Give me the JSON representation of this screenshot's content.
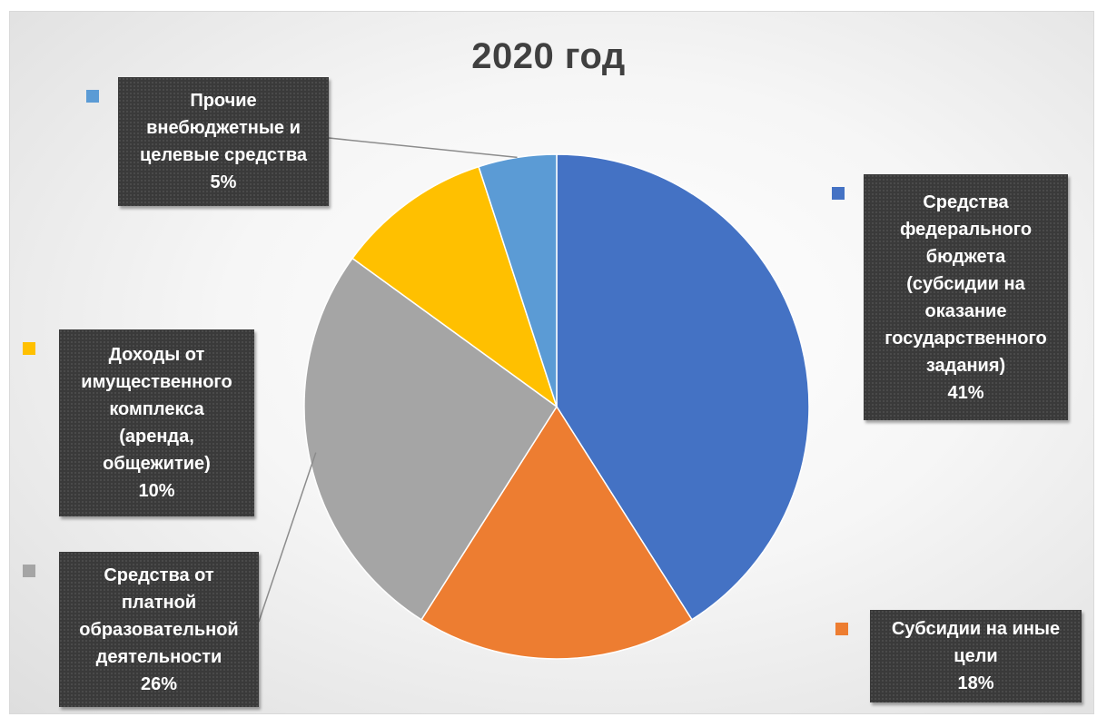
{
  "chart_data": {
    "type": "pie",
    "title": "2020 год",
    "categories": [
      "Средства федерального бюджета (субсидии на оказание государственного задания)",
      "Субсидии на иные цели",
      "Средства от платной образовательной деятельности",
      "Доходы от имущественного комплекса (аренда, общежитие)",
      "Прочие внебюджетные и целевые средства"
    ],
    "values": [
      41,
      18,
      26,
      10,
      5
    ],
    "value_labels": [
      "41%",
      "18%",
      "26%",
      "10%",
      "5%"
    ],
    "colors": [
      "#4472C4",
      "#ED7D31",
      "#A5A5A5",
      "#FFC000",
      "#5B9BD5"
    ],
    "labels": [
      {
        "name": "Средства\nфедерального\nбюджета\n(субсидии на\nоказание\nгосударственного\nзадания)",
        "pct": "41%"
      },
      {
        "name": "Субсидии на иные\nцели",
        "pct": "18%"
      },
      {
        "name": "Средства от\nплатной\nобразовательной\nдеятельности",
        "pct": "26%"
      },
      {
        "name": "Доходы от\nимущественного\nкомплекса\n(аренда,\nобщежитие)",
        "pct": "10%"
      },
      {
        "name": "Прочие\nвнебюджетные и\nцелевые средства",
        "pct": "5%"
      }
    ]
  }
}
